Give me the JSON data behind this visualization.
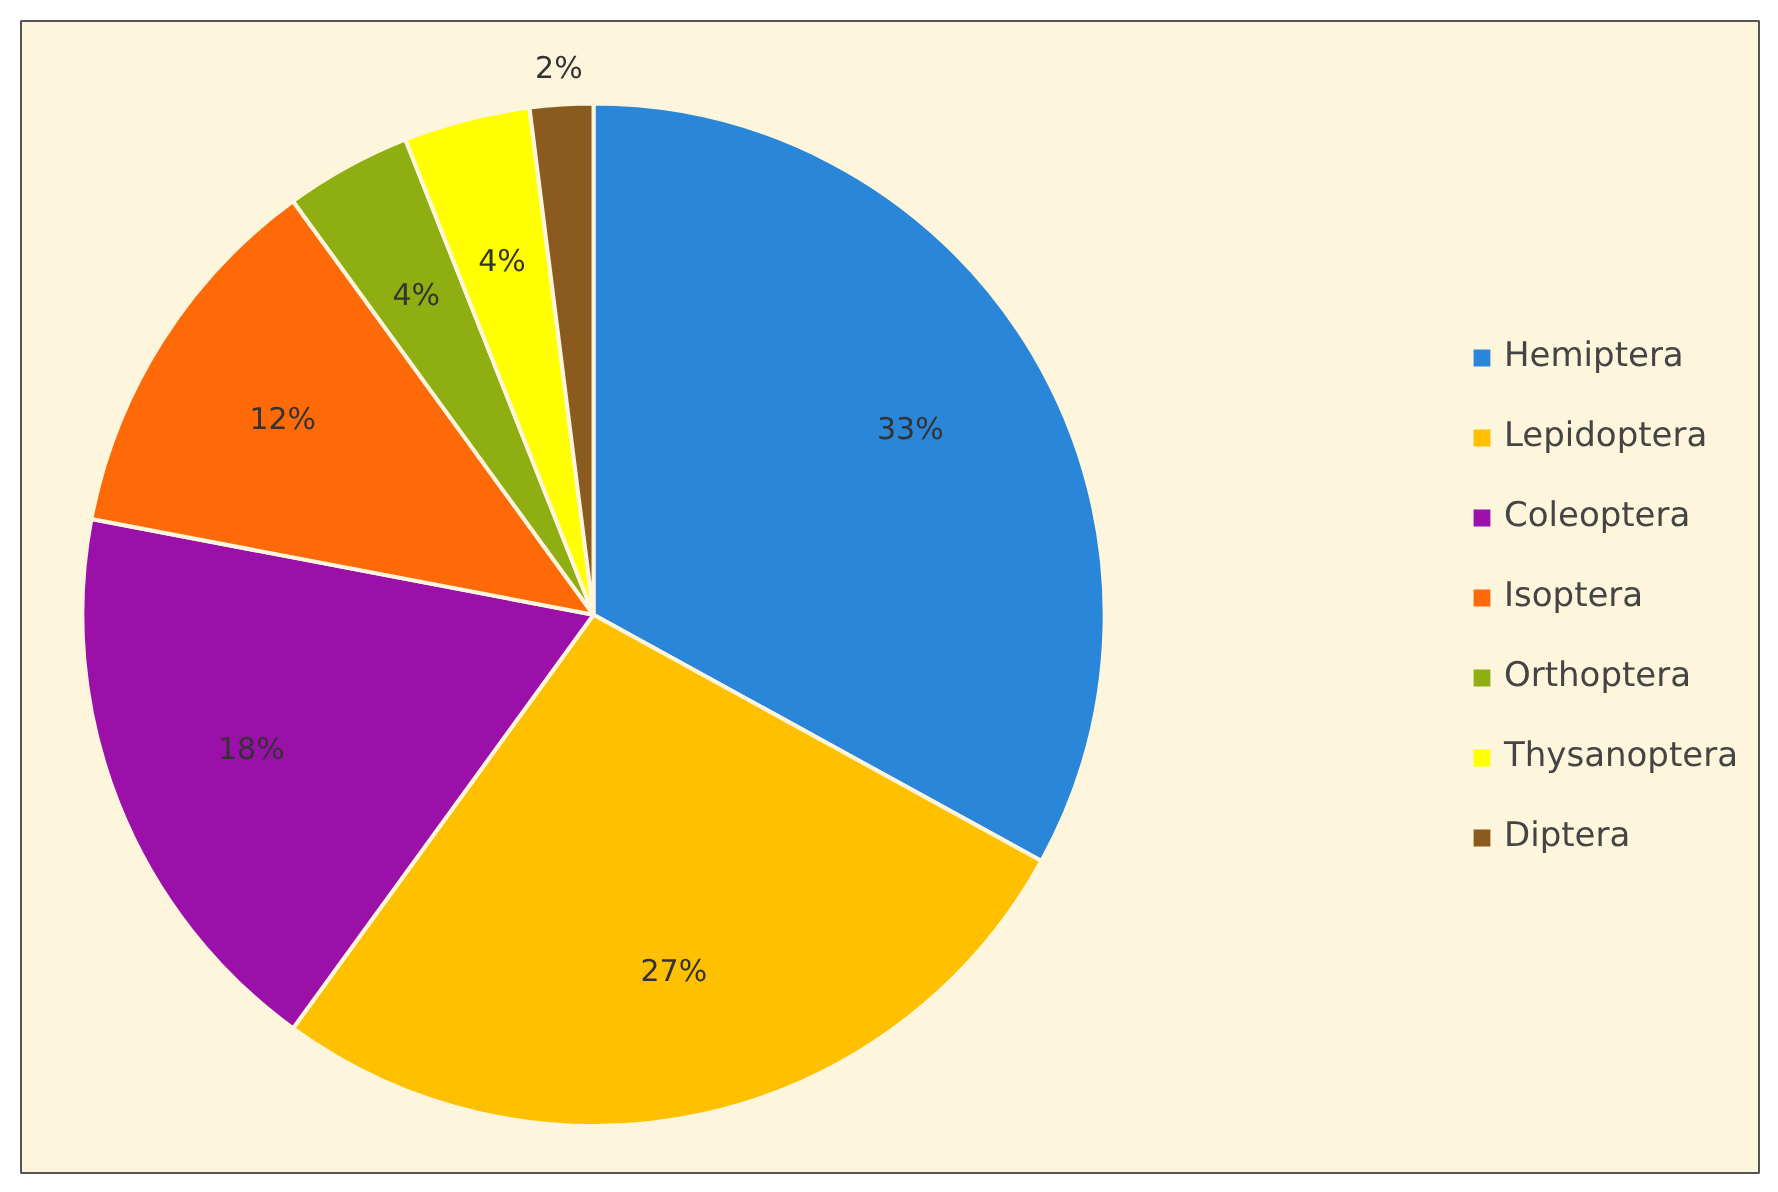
{
  "chart_data": {
    "type": "pie",
    "categories": [
      "Hemiptera",
      "Lepidoptera",
      "Coleoptera",
      "Isoptera",
      "Orthoptera",
      "Thysanoptera",
      "Diptera"
    ],
    "values": [
      33,
      27,
      18,
      12,
      4,
      4,
      2
    ],
    "colors": [
      "#2a86d8",
      "#ffc000",
      "#9b10a8",
      "#ff6a08",
      "#8fae12",
      "#ffff00",
      "#8b5a1e"
    ],
    "value_labels": [
      "33%",
      "27%",
      "18%",
      "12%",
      "4%",
      "4%",
      "2%"
    ],
    "legend": "right"
  }
}
